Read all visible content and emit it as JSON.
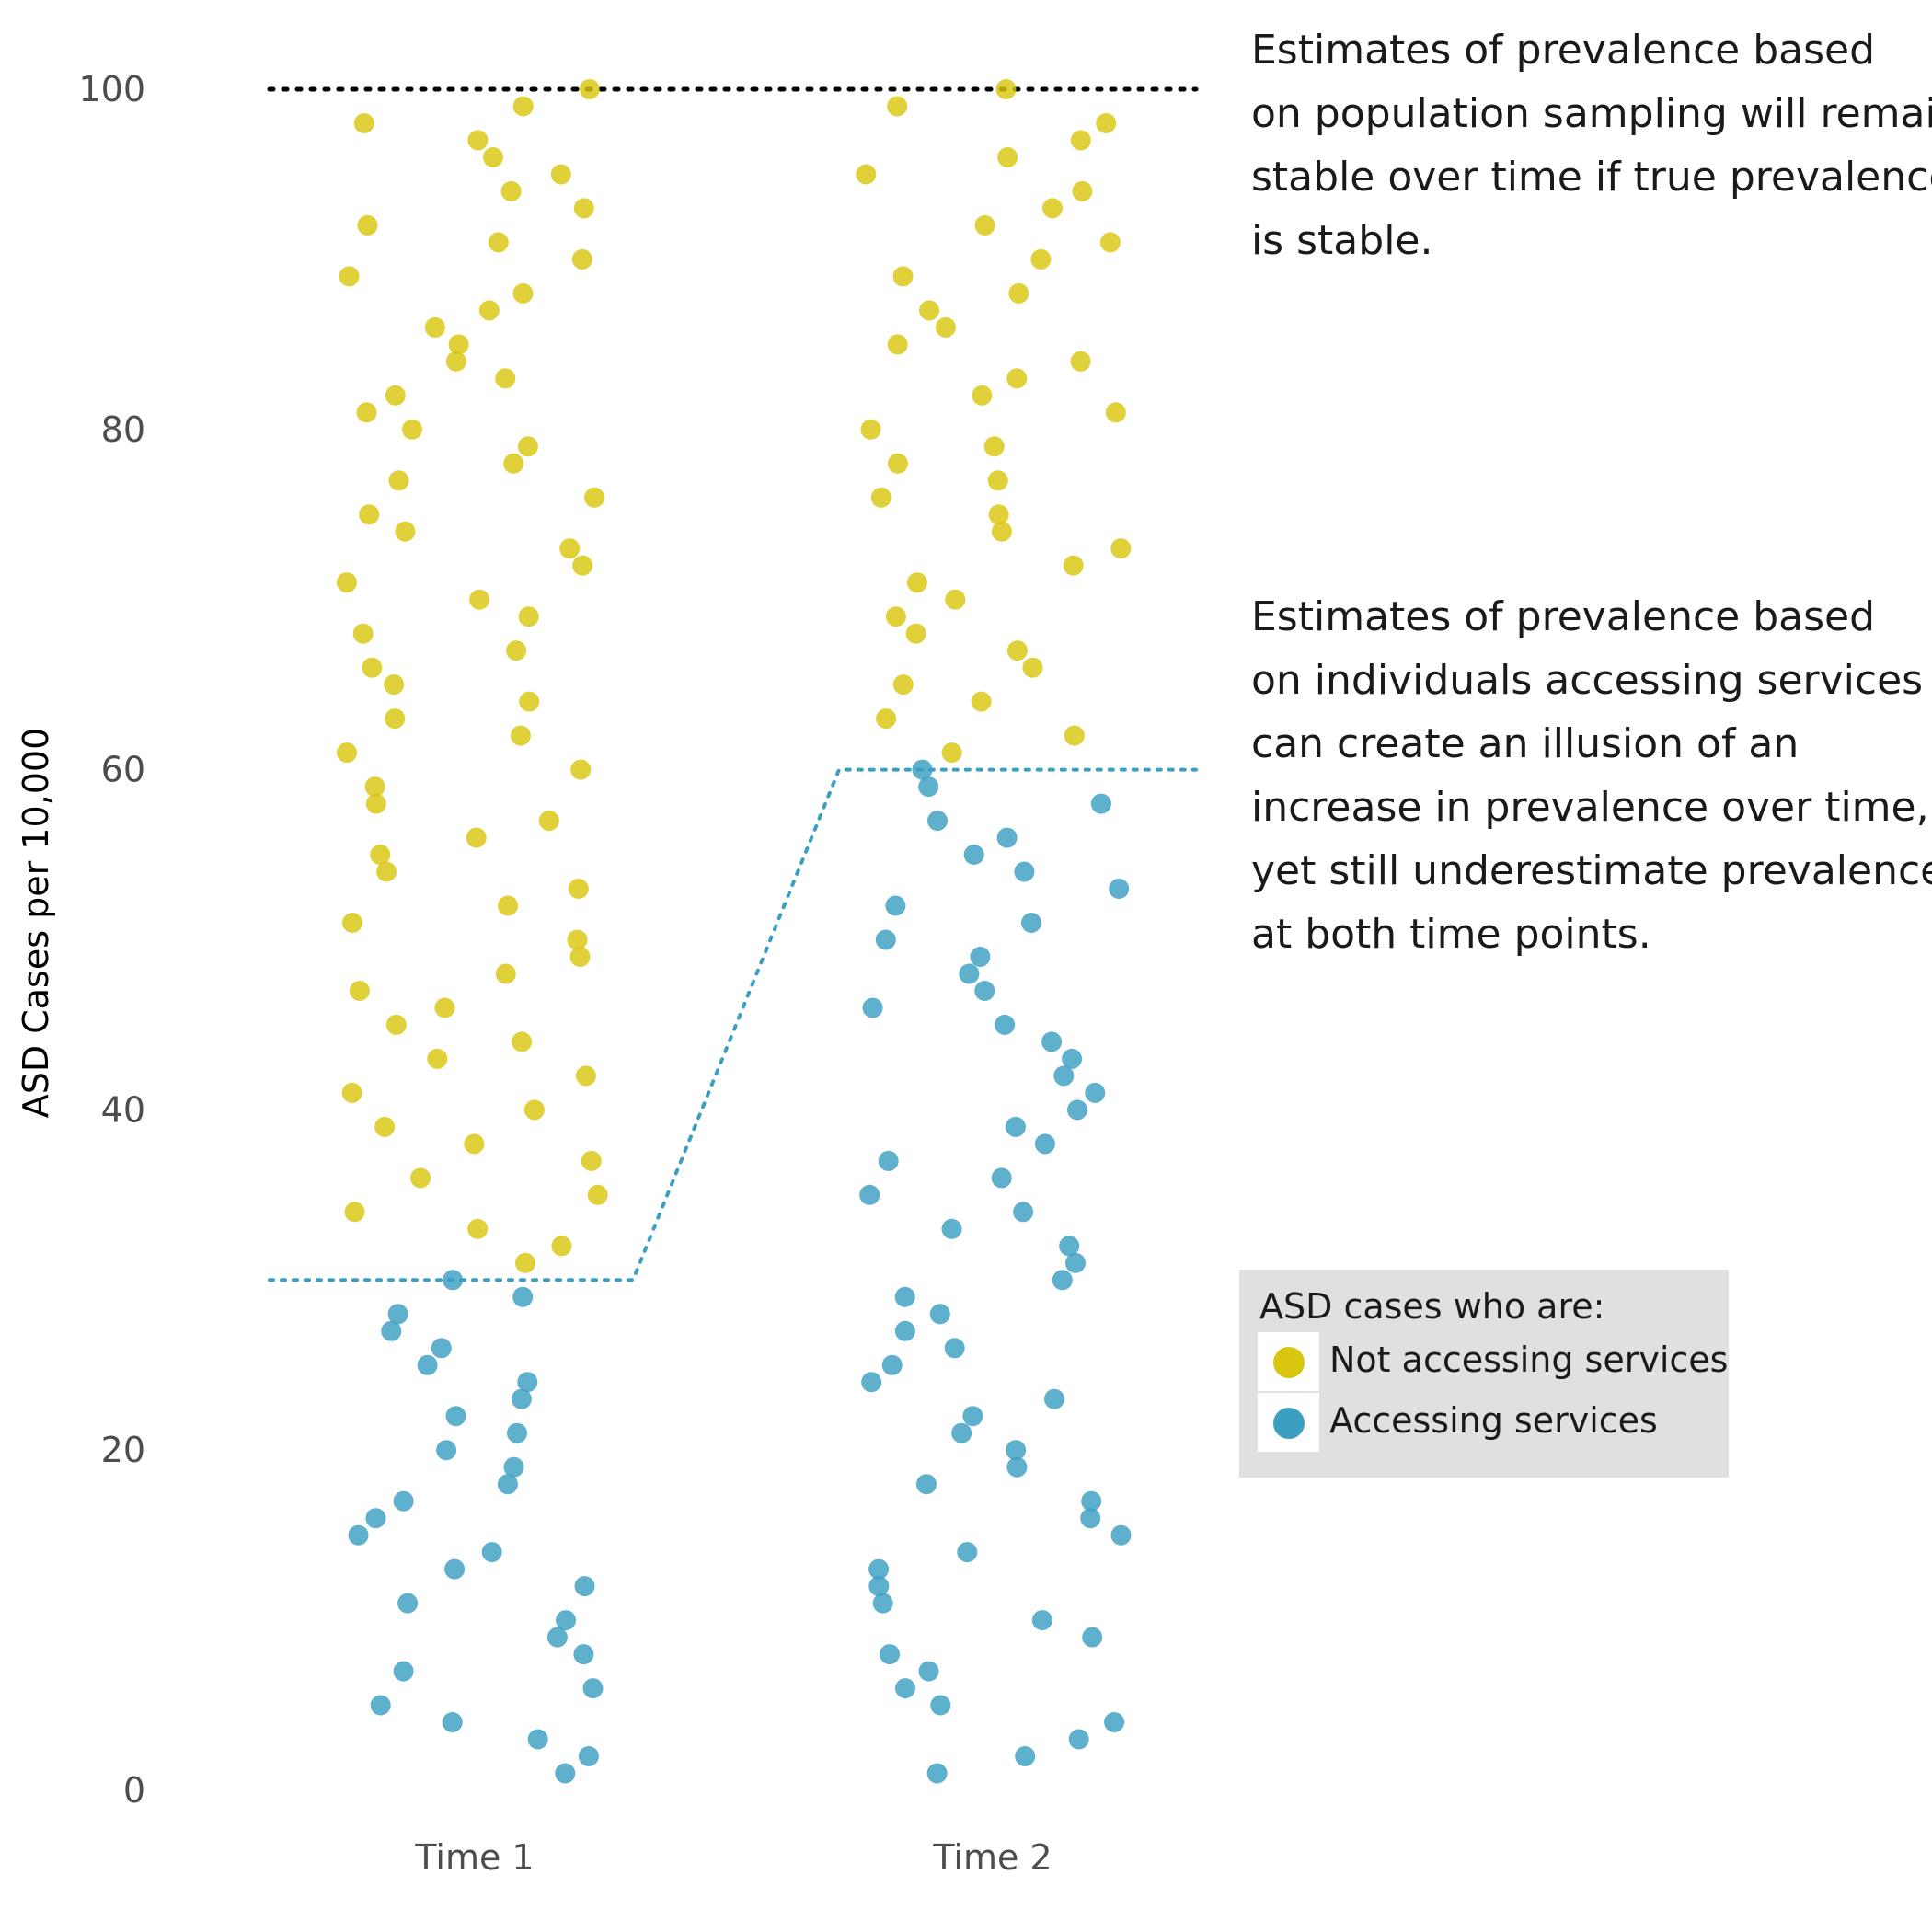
{
  "chart_data": {
    "type": "scatter",
    "title": "",
    "ylabel": "ASD Cases per 10,000",
    "xlabel": "",
    "categories": [
      "Time 1",
      "Time 2"
    ],
    "ylim": [
      0,
      100
    ],
    "yticks": [
      0,
      20,
      40,
      60,
      80,
      100
    ],
    "grid": false,
    "legend": {
      "title": "ASD cases who are:",
      "position": "right",
      "entries": [
        {
          "name": "Not accessing services",
          "color": "#d9c60f"
        },
        {
          "name": "Accessing services",
          "color": "#3b9fc1"
        }
      ]
    },
    "reference_lines": [
      {
        "description": "true prevalence",
        "y": [
          100,
          100
        ],
        "color": "#000000",
        "style": "dotted"
      },
      {
        "description": "service-based estimate",
        "y": [
          30,
          60
        ],
        "color": "#3b9fc1",
        "style": "dotted"
      }
    ],
    "series": [
      {
        "name": "Not accessing services",
        "color": "#d9c60f",
        "points": [
          {
            "x": "Time 1",
            "y": [
              100,
              99,
              98,
              97,
              96,
              95,
              94,
              93,
              92,
              91,
              90,
              89,
              88,
              87,
              86,
              85,
              84,
              83,
              82,
              81,
              80,
              79,
              78,
              77,
              76,
              75,
              74,
              73,
              72,
              71,
              70,
              69,
              68,
              67,
              66,
              65,
              64,
              63,
              62,
              61,
              60,
              59,
              58,
              57,
              56,
              55,
              54,
              53,
              52,
              51,
              50,
              49,
              48,
              47,
              46,
              45,
              44,
              43,
              42,
              41,
              40,
              39,
              38,
              37,
              36,
              35,
              34,
              33,
              32,
              31
            ]
          },
          {
            "x": "Time 2",
            "y": [
              100,
              99,
              98,
              97,
              96,
              95,
              94,
              93,
              92,
              91,
              90,
              89,
              88,
              87,
              86,
              85,
              84,
              83,
              82,
              81,
              80,
              79,
              78,
              77,
              76,
              75,
              74,
              73,
              72,
              71,
              70,
              69,
              68,
              67,
              66,
              65,
              64,
              63,
              62,
              61
            ]
          }
        ]
      },
      {
        "name": "Accessing services",
        "color": "#3b9fc1",
        "points": [
          {
            "x": "Time 1",
            "y": [
              30,
              29,
              28,
              27,
              26,
              25,
              24,
              23,
              22,
              21,
              20,
              19,
              18,
              17,
              16,
              15,
              14,
              13,
              12,
              11,
              10,
              9,
              8,
              7,
              6,
              5,
              4,
              3,
              2,
              1
            ]
          },
          {
            "x": "Time 2",
            "y": [
              60,
              59,
              58,
              57,
              56,
              55,
              54,
              53,
              52,
              51,
              50,
              49,
              48,
              47,
              46,
              45,
              44,
              43,
              42,
              41,
              40,
              39,
              38,
              37,
              36,
              35,
              34,
              33,
              32,
              31,
              30,
              29,
              28,
              27,
              26,
              25,
              24,
              23,
              22,
              21,
              20,
              19,
              18,
              17,
              16,
              15,
              14,
              13,
              12,
              11,
              10,
              9,
              8,
              7,
              6,
              5,
              4,
              3,
              2,
              1
            ]
          }
        ]
      }
    ]
  },
  "annotations": {
    "top": [
      "Estimates of prevalence based",
      "on population sampling will remain",
      "stable over time if true prevalence",
      "is stable."
    ],
    "bottom": [
      "Estimates of prevalence based",
      "on individuals accessing services",
      "can create an illusion of an",
      "increase in prevalence over time,",
      "yet still underestimate prevalence",
      "at both time points."
    ]
  }
}
